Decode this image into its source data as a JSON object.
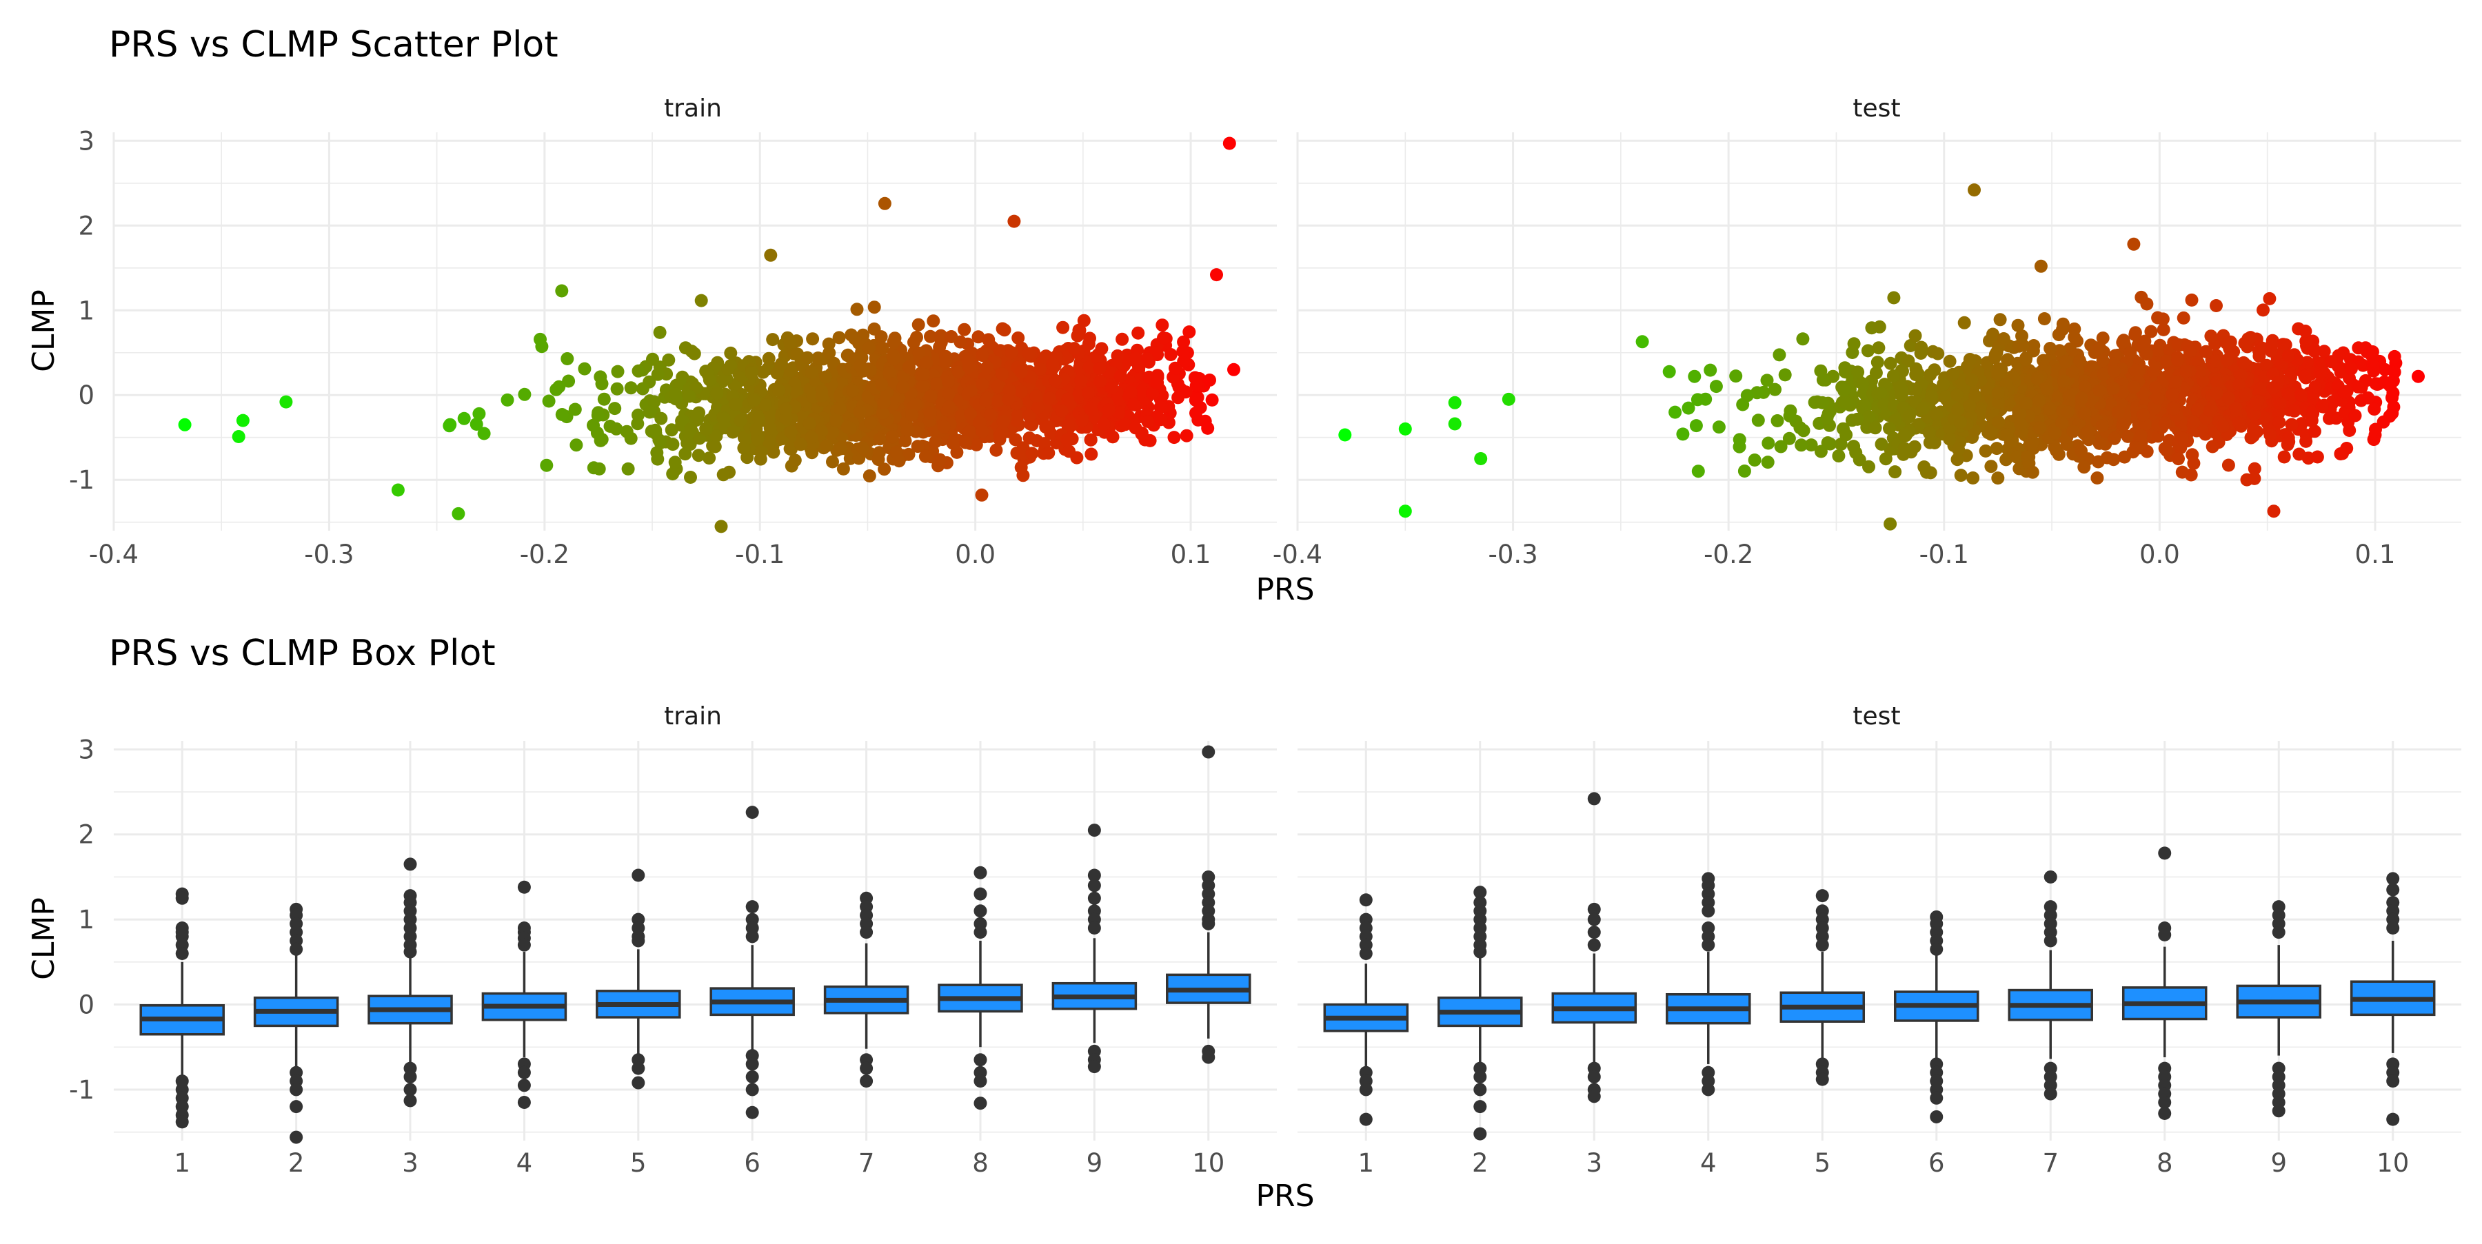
{
  "scatter": {
    "title": "PRS vs CLMP Scatter Plot",
    "panels": [
      "train",
      "test"
    ],
    "xlabel": "PRS",
    "ylabel": "CLMP",
    "xticks": [
      "-0.4",
      "-0.3",
      "-0.2",
      "-0.1",
      "0.0",
      "0.1"
    ],
    "yticks": [
      "-1",
      "0",
      "1",
      "2",
      "3"
    ]
  },
  "box": {
    "title": "PRS vs CLMP Box Plot",
    "panels": [
      "train",
      "test"
    ],
    "xlabel": "PRS",
    "ylabel": "CLMP",
    "xticks": [
      "1",
      "2",
      "3",
      "4",
      "5",
      "6",
      "7",
      "8",
      "9",
      "10"
    ],
    "yticks": [
      "-1",
      "0",
      "1",
      "2",
      "3"
    ]
  },
  "colors": {
    "low": "#00ff00",
    "high": "#ff0000",
    "box_fill": "#1e90ff",
    "box_line": "#333333",
    "outlier": "#333333",
    "grid": "#ebebeb"
  },
  "chart_data": [
    {
      "type": "scatter",
      "title": "PRS vs CLMP Scatter Plot",
      "xlabel": "PRS",
      "ylabel": "CLMP",
      "xlim": [
        -0.4,
        0.14
      ],
      "ylim": [
        -1.6,
        3.1
      ],
      "grid": true,
      "legend": "none",
      "color_scale": {
        "low": "#00ff00",
        "high": "#ff0000",
        "mapped_to": "PRS"
      },
      "facets": [
        {
          "name": "train",
          "x_range": [
            -0.37,
            0.12
          ],
          "outliers": [
            {
              "x": 0.118,
              "y": 2.97
            },
            {
              "x": -0.042,
              "y": 2.26
            },
            {
              "x": 0.018,
              "y": 2.05
            },
            {
              "x": -0.367,
              "y": -0.35
            },
            {
              "x": -0.34,
              "y": -0.3
            },
            {
              "x": -0.342,
              "y": -0.49
            },
            {
              "x": -0.24,
              "y": -1.4
            },
            {
              "x": -0.118,
              "y": -1.55
            },
            {
              "x": 0.003,
              "y": -1.18
            },
            {
              "x": 0.12,
              "y": 0.3
            },
            {
              "x": 0.112,
              "y": 1.42
            },
            {
              "x": -0.095,
              "y": 1.65
            },
            {
              "x": -0.268,
              "y": -1.12
            },
            {
              "x": -0.192,
              "y": 1.23
            },
            {
              "x": -0.32,
              "y": -0.08
            }
          ]
        },
        {
          "name": "test",
          "x_range": [
            -0.38,
            0.12
          ],
          "outliers": [
            {
              "x": -0.086,
              "y": 2.42
            },
            {
              "x": -0.012,
              "y": 1.78
            },
            {
              "x": -0.378,
              "y": -0.47
            },
            {
              "x": -0.35,
              "y": -0.4
            },
            {
              "x": -0.35,
              "y": -1.37
            },
            {
              "x": -0.327,
              "y": -0.34
            },
            {
              "x": -0.315,
              "y": -0.75
            },
            {
              "x": -0.302,
              "y": -0.05
            },
            {
              "x": -0.327,
              "y": -0.09
            },
            {
              "x": 0.12,
              "y": 0.22
            },
            {
              "x": 0.1,
              "y": -0.47
            },
            {
              "x": -0.125,
              "y": -1.52
            },
            {
              "x": 0.053,
              "y": -1.37
            },
            {
              "x": -0.24,
              "y": 0.63
            },
            {
              "x": -0.055,
              "y": 1.52
            }
          ]
        }
      ]
    },
    {
      "type": "box",
      "title": "PRS vs CLMP Box Plot",
      "xlabel": "PRS",
      "ylabel": "CLMP",
      "categories": [
        "1",
        "2",
        "3",
        "4",
        "5",
        "6",
        "7",
        "8",
        "9",
        "10"
      ],
      "ylim": [
        -1.6,
        3.1
      ],
      "grid": true,
      "facets": [
        {
          "name": "train",
          "boxes": [
            {
              "q1": -0.35,
              "median": -0.17,
              "q3": -0.01,
              "whislo": -0.85,
              "whishi": 0.5,
              "outliers": [
                1.3,
                1.25,
                0.9,
                0.85,
                0.8,
                0.7,
                0.6,
                -0.9,
                -1.0,
                -1.1,
                -1.2,
                -1.3,
                -1.38
              ]
            },
            {
              "q1": -0.25,
              "median": -0.08,
              "q3": 0.08,
              "whislo": -0.73,
              "whishi": 0.58,
              "outliers": [
                1.12,
                1.05,
                0.95,
                0.85,
                0.75,
                0.65,
                -0.8,
                -0.9,
                -1.0,
                -1.2,
                -1.56
              ]
            },
            {
              "q1": -0.22,
              "median": -0.06,
              "q3": 0.1,
              "whislo": -0.7,
              "whishi": 0.58,
              "outliers": [
                1.65,
                1.28,
                1.2,
                1.1,
                1.0,
                0.9,
                0.8,
                0.7,
                0.62,
                -0.75,
                -0.85,
                -1.0,
                -1.13
              ]
            },
            {
              "q1": -0.18,
              "median": -0.02,
              "q3": 0.13,
              "whislo": -0.62,
              "whishi": 0.62,
              "outliers": [
                1.38,
                0.9,
                0.85,
                0.78,
                0.7,
                -0.7,
                -0.8,
                -0.95,
                -1.15
              ]
            },
            {
              "q1": -0.15,
              "median": 0.0,
              "q3": 0.16,
              "whislo": -0.6,
              "whishi": 0.65,
              "outliers": [
                1.52,
                1.0,
                0.9,
                0.8,
                0.75,
                -0.65,
                -0.75,
                -0.92
              ]
            },
            {
              "q1": -0.12,
              "median": 0.03,
              "q3": 0.19,
              "whislo": -0.55,
              "whishi": 0.7,
              "outliers": [
                2.26,
                1.15,
                1.0,
                0.9,
                0.8,
                -0.6,
                -0.7,
                -0.85,
                -1.0,
                -1.27
              ]
            },
            {
              "q1": -0.1,
              "median": 0.05,
              "q3": 0.21,
              "whislo": -0.52,
              "whishi": 0.72,
              "outliers": [
                1.25,
                1.15,
                1.05,
                0.95,
                0.85,
                -0.65,
                -0.75,
                -0.9
              ]
            },
            {
              "q1": -0.08,
              "median": 0.07,
              "q3": 0.23,
              "whislo": -0.5,
              "whishi": 0.75,
              "outliers": [
                1.55,
                1.3,
                1.1,
                0.95,
                0.85,
                -0.65,
                -0.8,
                -0.9,
                -1.16
              ]
            },
            {
              "q1": -0.05,
              "median": 0.09,
              "q3": 0.25,
              "whislo": -0.45,
              "whishi": 0.78,
              "outliers": [
                2.05,
                1.52,
                1.4,
                1.25,
                1.1,
                1.0,
                0.9,
                -0.55,
                -0.65,
                -0.73
              ]
            },
            {
              "q1": 0.02,
              "median": 0.17,
              "q3": 0.35,
              "whislo": -0.4,
              "whishi": 0.85,
              "outliers": [
                2.97,
                1.5,
                1.4,
                1.3,
                1.2,
                1.1,
                1.0,
                0.95,
                -0.55,
                -0.62
              ]
            }
          ]
        },
        {
          "name": "test",
          "boxes": [
            {
              "q1": -0.31,
              "median": -0.16,
              "q3": 0.0,
              "whislo": -0.75,
              "whishi": 0.48,
              "outliers": [
                1.23,
                1.0,
                0.9,
                0.8,
                0.7,
                0.6,
                -0.8,
                -0.9,
                -1.0,
                -1.35
              ]
            },
            {
              "q1": -0.25,
              "median": -0.09,
              "q3": 0.08,
              "whislo": -0.7,
              "whishi": 0.55,
              "outliers": [
                1.32,
                1.2,
                1.1,
                1.0,
                0.9,
                0.8,
                0.7,
                0.62,
                -0.75,
                -0.85,
                -1.0,
                -1.2,
                -1.52
              ]
            },
            {
              "q1": -0.21,
              "median": -0.05,
              "q3": 0.13,
              "whislo": -0.68,
              "whishi": 0.6,
              "outliers": [
                2.42,
                1.12,
                1.0,
                0.85,
                0.7,
                -0.75,
                -0.85,
                -1.0,
                -1.08
              ]
            },
            {
              "q1": -0.22,
              "median": -0.05,
              "q3": 0.12,
              "whislo": -0.7,
              "whishi": 0.62,
              "outliers": [
                1.48,
                1.4,
                1.3,
                1.2,
                1.1,
                0.9,
                0.8,
                0.7,
                -0.8,
                -0.9,
                -1.0
              ]
            },
            {
              "q1": -0.2,
              "median": -0.03,
              "q3": 0.14,
              "whislo": -0.66,
              "whishi": 0.62,
              "outliers": [
                1.28,
                1.1,
                1.0,
                0.9,
                0.8,
                0.7,
                -0.7,
                -0.8,
                -0.88
              ]
            },
            {
              "q1": -0.19,
              "median": -0.01,
              "q3": 0.15,
              "whislo": -0.66,
              "whishi": 0.62,
              "outliers": [
                1.03,
                0.95,
                0.85,
                0.75,
                0.65,
                -0.7,
                -0.8,
                -0.9,
                -1.0,
                -1.1,
                -1.32
              ]
            },
            {
              "q1": -0.18,
              "median": -0.01,
              "q3": 0.17,
              "whislo": -0.64,
              "whishi": 0.64,
              "outliers": [
                1.5,
                1.15,
                1.05,
                0.95,
                0.85,
                0.75,
                -0.75,
                -0.85,
                -0.95,
                -1.05
              ]
            },
            {
              "q1": -0.17,
              "median": 0.01,
              "q3": 0.2,
              "whislo": -0.62,
              "whishi": 0.68,
              "outliers": [
                1.78,
                0.9,
                0.82,
                -0.75,
                -0.85,
                -0.95,
                -1.05,
                -1.15,
                -1.28
              ]
            },
            {
              "q1": -0.15,
              "median": 0.03,
              "q3": 0.22,
              "whislo": -0.6,
              "whishi": 0.7,
              "outliers": [
                1.15,
                1.05,
                0.95,
                0.85,
                -0.75,
                -0.85,
                -0.95,
                -1.05,
                -1.15,
                -1.25
              ]
            },
            {
              "q1": -0.12,
              "median": 0.06,
              "q3": 0.27,
              "whislo": -0.57,
              "whishi": 0.75,
              "outliers": [
                1.48,
                1.35,
                1.2,
                1.1,
                1.0,
                0.9,
                -0.7,
                -0.8,
                -0.9,
                -1.35
              ]
            }
          ]
        }
      ]
    }
  ]
}
